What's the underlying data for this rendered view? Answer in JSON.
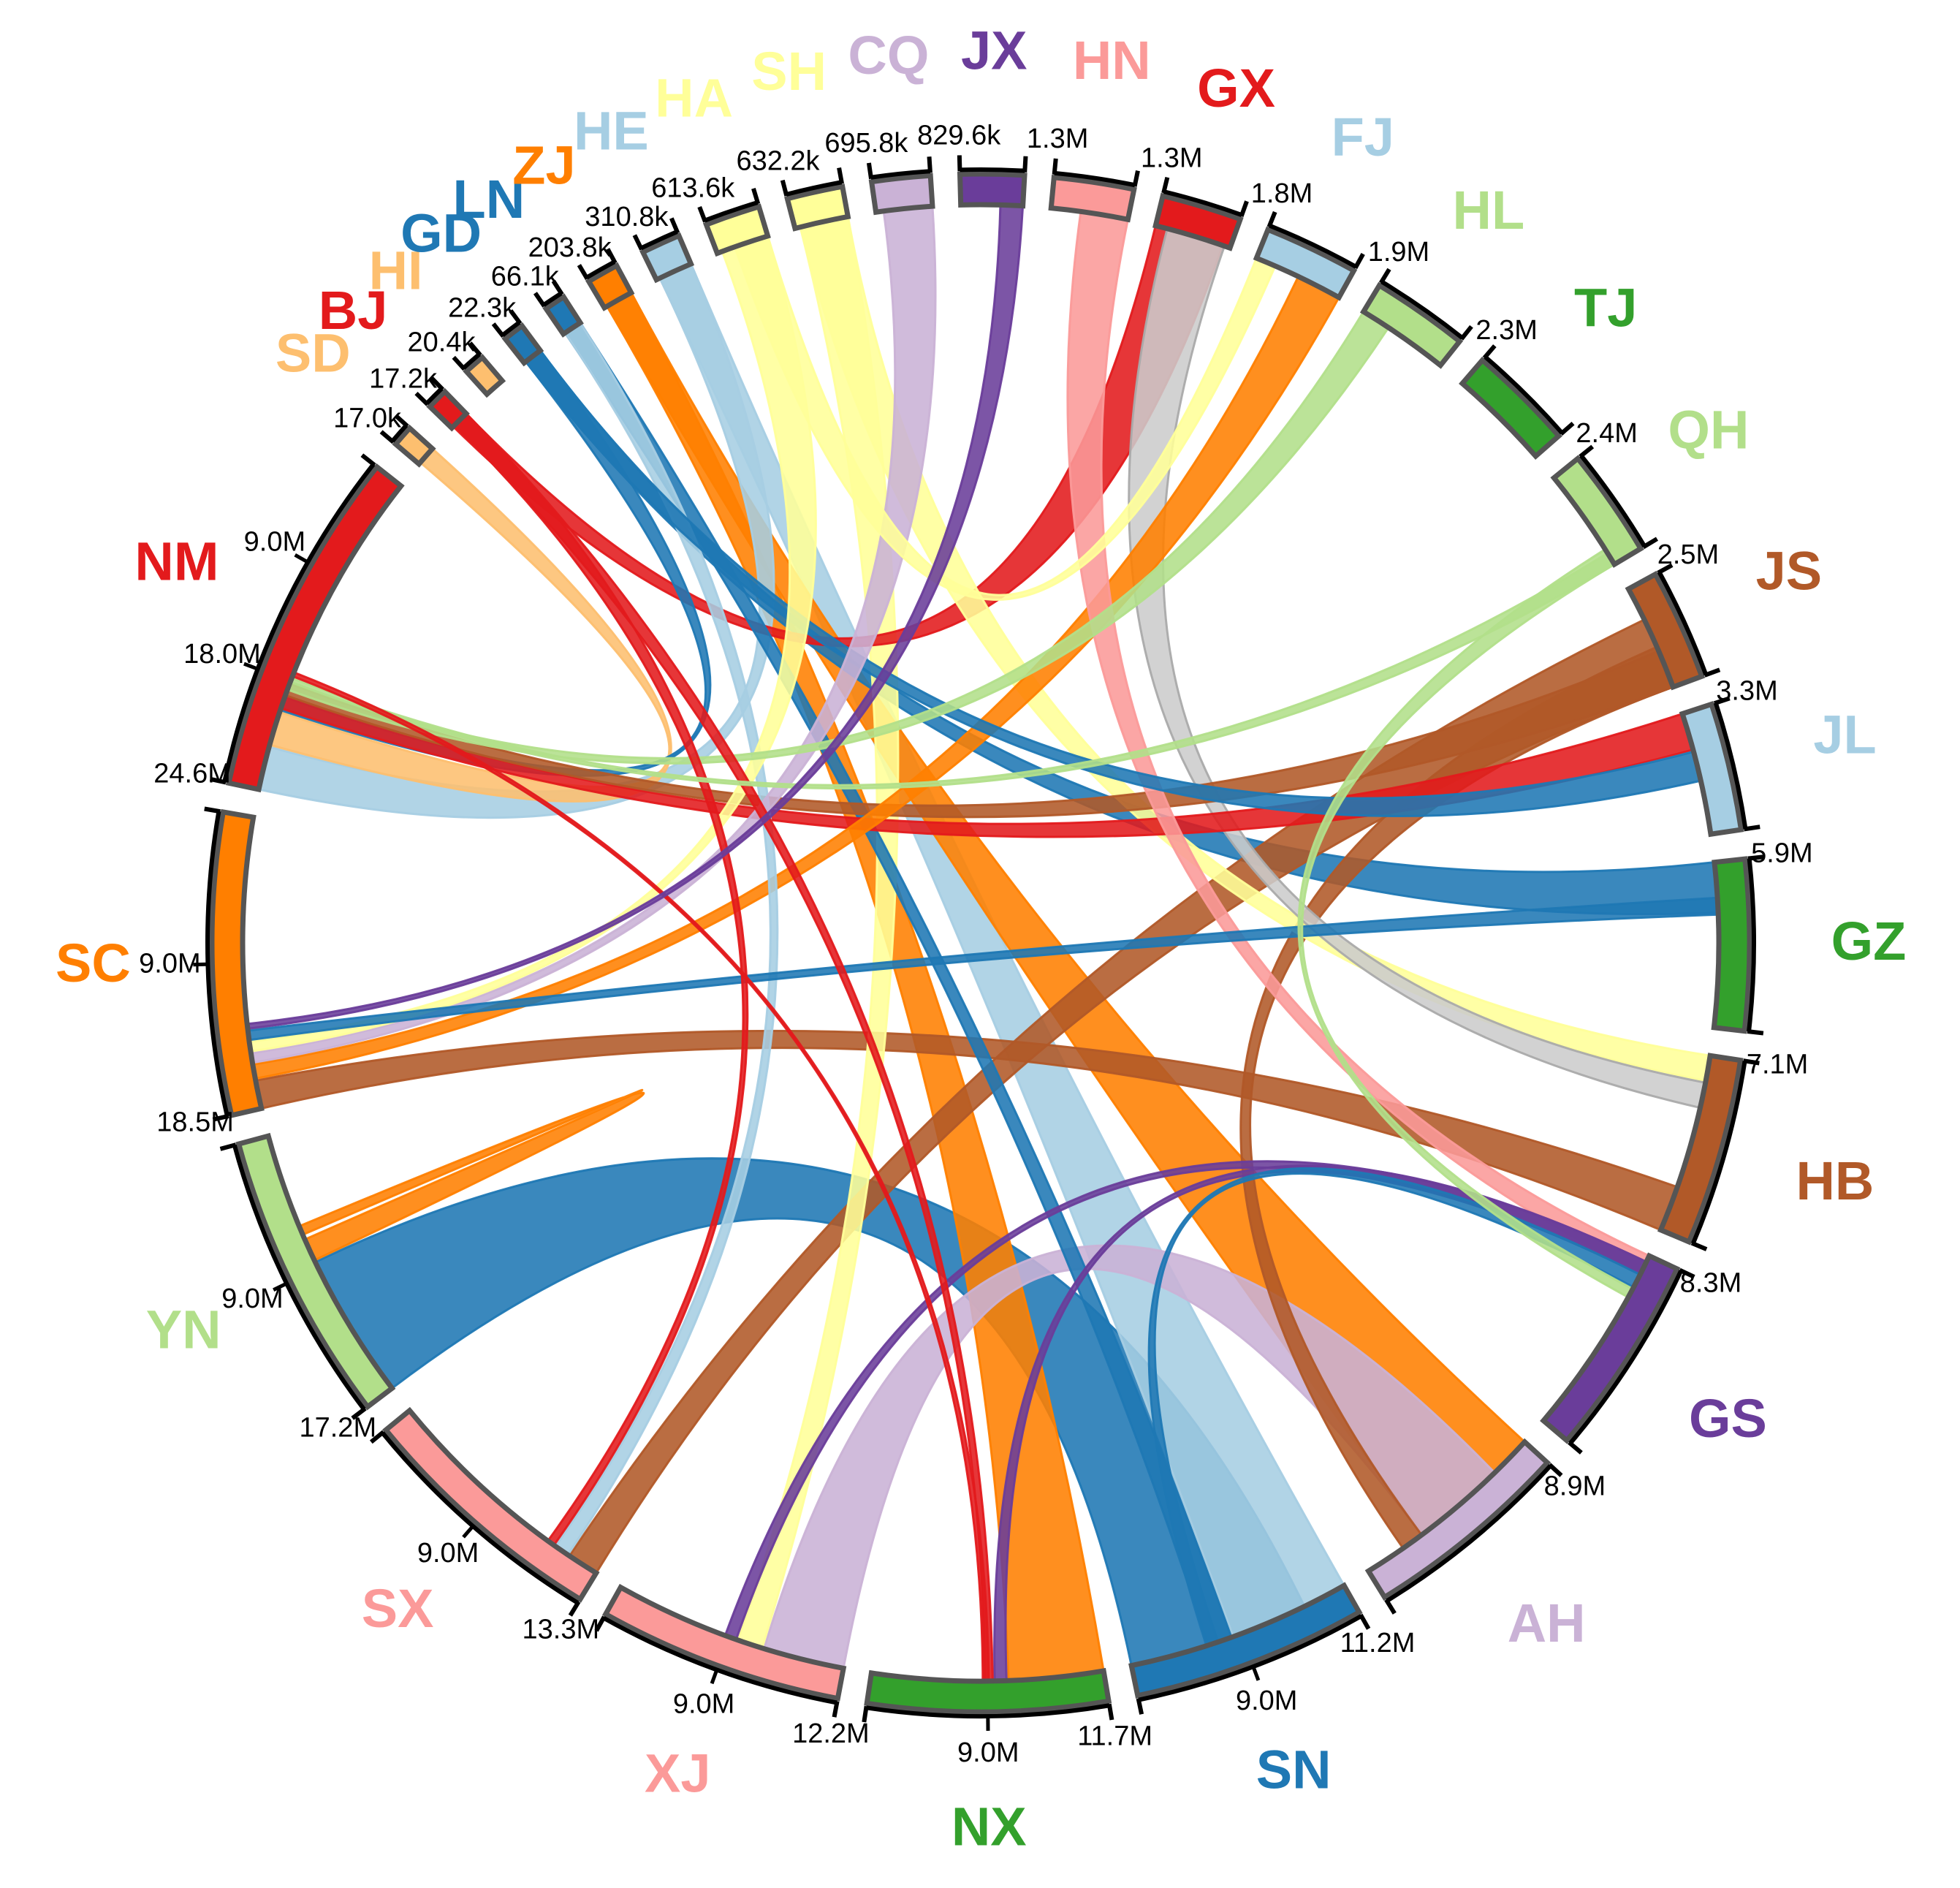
{
  "chart_data": {
    "type": "chord",
    "nodes": [
      {
        "id": "NM",
        "label": "NM",
        "total_label": "24.6M",
        "ticks": [
          "18.0M",
          "9.0M"
        ],
        "color": "#e31a1c",
        "value": 24.6
      },
      {
        "id": "SD",
        "label": "SD",
        "total_label": "17.0k",
        "ticks": [],
        "color": "#fdbf6f",
        "value": 0.017
      },
      {
        "id": "BJ",
        "label": "BJ",
        "total_label": "17.2k",
        "ticks": [],
        "color": "#e31a1c",
        "value": 0.0172
      },
      {
        "id": "HI",
        "label": "HI",
        "total_label": "20.4k",
        "ticks": [],
        "color": "#fdbf6f",
        "value": 0.0204
      },
      {
        "id": "GD",
        "label": "GD",
        "total_label": "22.3k",
        "ticks": [],
        "color": "#1f78b4",
        "value": 0.0223
      },
      {
        "id": "LN",
        "label": "LN",
        "total_label": "66.1k",
        "ticks": [],
        "color": "#1f78b4",
        "value": 0.0661
      },
      {
        "id": "ZJ",
        "label": "ZJ",
        "total_label": "203.8k",
        "ticks": [],
        "color": "#ff7f00",
        "value": 0.2038
      },
      {
        "id": "HE",
        "label": "HE",
        "total_label": "310.8k",
        "ticks": [],
        "color": "#a6cee3",
        "value": 0.3108
      },
      {
        "id": "HA",
        "label": "HA",
        "total_label": "613.6k",
        "ticks": [],
        "color": "#ffff99",
        "value": 0.6136
      },
      {
        "id": "SH",
        "label": "SH",
        "total_label": "632.2k",
        "ticks": [],
        "color": "#ffff99",
        "value": 0.6322
      },
      {
        "id": "CQ",
        "label": "CQ",
        "total_label": "695.8k",
        "ticks": [],
        "color": "#cab2d6",
        "value": 0.6958
      },
      {
        "id": "JX",
        "label": "JX",
        "total_label": "829.6k",
        "ticks": [],
        "color": "#6a3d9a",
        "value": 0.8296
      },
      {
        "id": "HN",
        "label": "HN",
        "total_label": "1.3M",
        "ticks": [],
        "color": "#fb9a99",
        "value": 1.3
      },
      {
        "id": "GX",
        "label": "GX",
        "total_label": "1.3M",
        "ticks": [],
        "color": "#e31a1c",
        "value": 1.3
      },
      {
        "id": "FJ",
        "label": "FJ",
        "total_label": "1.8M",
        "ticks": [],
        "color": "#a6cee3",
        "value": 1.8
      },
      {
        "id": "HL",
        "label": "HL",
        "total_label": "1.9M",
        "ticks": [],
        "color": "#b2df8a",
        "value": 1.9
      },
      {
        "id": "TJ",
        "label": "TJ",
        "total_label": "2.3M",
        "ticks": [],
        "color": "#33a02c",
        "value": 2.3
      },
      {
        "id": "QH",
        "label": "QH",
        "total_label": "2.4M",
        "ticks": [],
        "color": "#b2df8a",
        "value": 2.4
      },
      {
        "id": "JS",
        "label": "JS",
        "total_label": "2.5M",
        "ticks": [],
        "color": "#b15928",
        "value": 2.5
      },
      {
        "id": "JL",
        "label": "JL",
        "total_label": "3.3M",
        "ticks": [],
        "color": "#a6cee3",
        "value": 3.3
      },
      {
        "id": "GZ",
        "label": "GZ",
        "total_label": "5.9M",
        "ticks": [],
        "color": "#33a02c",
        "value": 5.9
      },
      {
        "id": "HB",
        "label": "HB",
        "total_label": "7.1M",
        "ticks": [],
        "color": "#b15928",
        "value": 7.1
      },
      {
        "id": "GS",
        "label": "GS",
        "total_label": "8.3M",
        "ticks": [],
        "color": "#6a3d9a",
        "value": 8.3
      },
      {
        "id": "AH",
        "label": "AH",
        "total_label": "8.9M",
        "ticks": [],
        "color": "#cab2d6",
        "value": 8.9
      },
      {
        "id": "SN",
        "label": "SN",
        "total_label": "11.2M",
        "ticks": [
          "9.0M"
        ],
        "color": "#1f78b4",
        "value": 11.2
      },
      {
        "id": "NX",
        "label": "NX",
        "total_label": "11.7M",
        "ticks": [
          "9.0M"
        ],
        "color": "#33a02c",
        "value": 11.7
      },
      {
        "id": "XJ",
        "label": "XJ",
        "total_label": "12.2M",
        "ticks": [
          "9.0M"
        ],
        "color": "#fb9a99",
        "value": 12.2
      },
      {
        "id": "SX",
        "label": "SX",
        "total_label": "13.3M",
        "ticks": [
          "9.0M"
        ],
        "color": "#fb9a99",
        "value": 13.3
      },
      {
        "id": "YN",
        "label": "YN",
        "total_label": "17.2M",
        "ticks": [
          "9.0M"
        ],
        "color": "#b2df8a",
        "value": 17.2
      },
      {
        "id": "SC",
        "label": "SC",
        "total_label": "18.5M",
        "ticks": [
          "9.0M"
        ],
        "color": "#ff7f00",
        "value": 18.5
      }
    ],
    "links": [
      {
        "source": "YN",
        "target": "SN",
        "value": 9.0,
        "color": "#1f78b4"
      },
      {
        "source": "YN",
        "target": "YN",
        "value": 1.4,
        "color": "#ff7f00"
      },
      {
        "source": "NM",
        "target": "HE",
        "value": 3.2,
        "color": "#a6cee3"
      },
      {
        "source": "NM",
        "target": "SD",
        "value": 2.5,
        "color": "#fdbf6f"
      },
      {
        "source": "NM",
        "target": "GD",
        "value": 1.0,
        "color": "#1f78b4"
      },
      {
        "source": "NM",
        "target": "JS",
        "value": 0.9,
        "color": "#b15928"
      },
      {
        "source": "NM",
        "target": "QH",
        "value": 0.3,
        "color": "#b2df8a"
      },
      {
        "source": "NM",
        "target": "NX",
        "value": 0.3,
        "color": "#e31a1c"
      },
      {
        "source": "SC",
        "target": "HB",
        "value": 1.8,
        "color": "#b15928"
      },
      {
        "source": "SC",
        "target": "CQ",
        "value": 0.6,
        "color": "#cab2d6"
      },
      {
        "source": "SC",
        "target": "FJ",
        "value": 0.9,
        "color": "#ff7f00"
      },
      {
        "source": "SC",
        "target": "HA",
        "value": 0.6,
        "color": "#ffff99"
      },
      {
        "source": "SC",
        "target": "GZ",
        "value": 0.6,
        "color": "#1f78b4"
      },
      {
        "source": "SC",
        "target": "JX",
        "value": 0.3,
        "color": "#6a3d9a"
      },
      {
        "source": "SX",
        "target": "JS",
        "value": 1.7,
        "color": "#b15928"
      },
      {
        "source": "SX",
        "target": "LN",
        "value": 0.8,
        "color": "#a6cee3"
      },
      {
        "source": "SX",
        "target": "BJ",
        "value": 0.4,
        "color": "#e31a1c"
      },
      {
        "source": "XJ",
        "target": "AH",
        "value": 4.2,
        "color": "#cab2d6"
      },
      {
        "source": "XJ",
        "target": "SH",
        "value": 1.3,
        "color": "#ffff99"
      },
      {
        "source": "XJ",
        "target": "GS",
        "value": 0.6,
        "color": "#6a3d9a"
      },
      {
        "source": "NX",
        "target": "ZJ",
        "value": 4.8,
        "color": "#ff7f00"
      },
      {
        "source": "NX",
        "target": "GS",
        "value": 0.6,
        "color": "#6a3d9a"
      },
      {
        "source": "NX",
        "target": "BJ",
        "value": 0.4,
        "color": "#e31a1c"
      },
      {
        "source": "SN",
        "target": "HE",
        "value": 6.0,
        "color": "#a6cee3"
      },
      {
        "source": "SN",
        "target": "LN",
        "value": 1.2,
        "color": "#1f78b4"
      },
      {
        "source": "AH",
        "target": "ZJ",
        "value": 6.0,
        "color": "#ff7f00"
      },
      {
        "source": "AH",
        "target": "JS",
        "value": 1.0,
        "color": "#b15928"
      },
      {
        "source": "GS",
        "target": "HN",
        "value": 0.8,
        "color": "#fb9a99"
      },
      {
        "source": "GS",
        "target": "SN",
        "value": 0.6,
        "color": "#1f78b4"
      },
      {
        "source": "GS",
        "target": "QH",
        "value": 0.4,
        "color": "#b2df8a"
      },
      {
        "source": "HB",
        "target": "SH",
        "value": 1.0,
        "color": "#ffff99"
      },
      {
        "source": "HB",
        "target": "GX",
        "value": 1.0,
        "color": "#cccccc"
      },
      {
        "source": "GZ",
        "target": "GD",
        "value": 1.8,
        "color": "#1f78b4"
      },
      {
        "source": "JL",
        "target": "NM",
        "value": 1.0,
        "color": "#e31a1c"
      },
      {
        "source": "GX",
        "target": "BJ",
        "value": 1.3,
        "color": "#e31a1c"
      },
      {
        "source": "HL",
        "target": "NM",
        "value": 0.6,
        "color": "#b2df8a"
      },
      {
        "source": "FJ",
        "target": "HA",
        "value": 0.4,
        "color": "#ffff99"
      },
      {
        "source": "JL",
        "target": "GD",
        "value": 0.8,
        "color": "#1f78b4"
      }
    ]
  }
}
